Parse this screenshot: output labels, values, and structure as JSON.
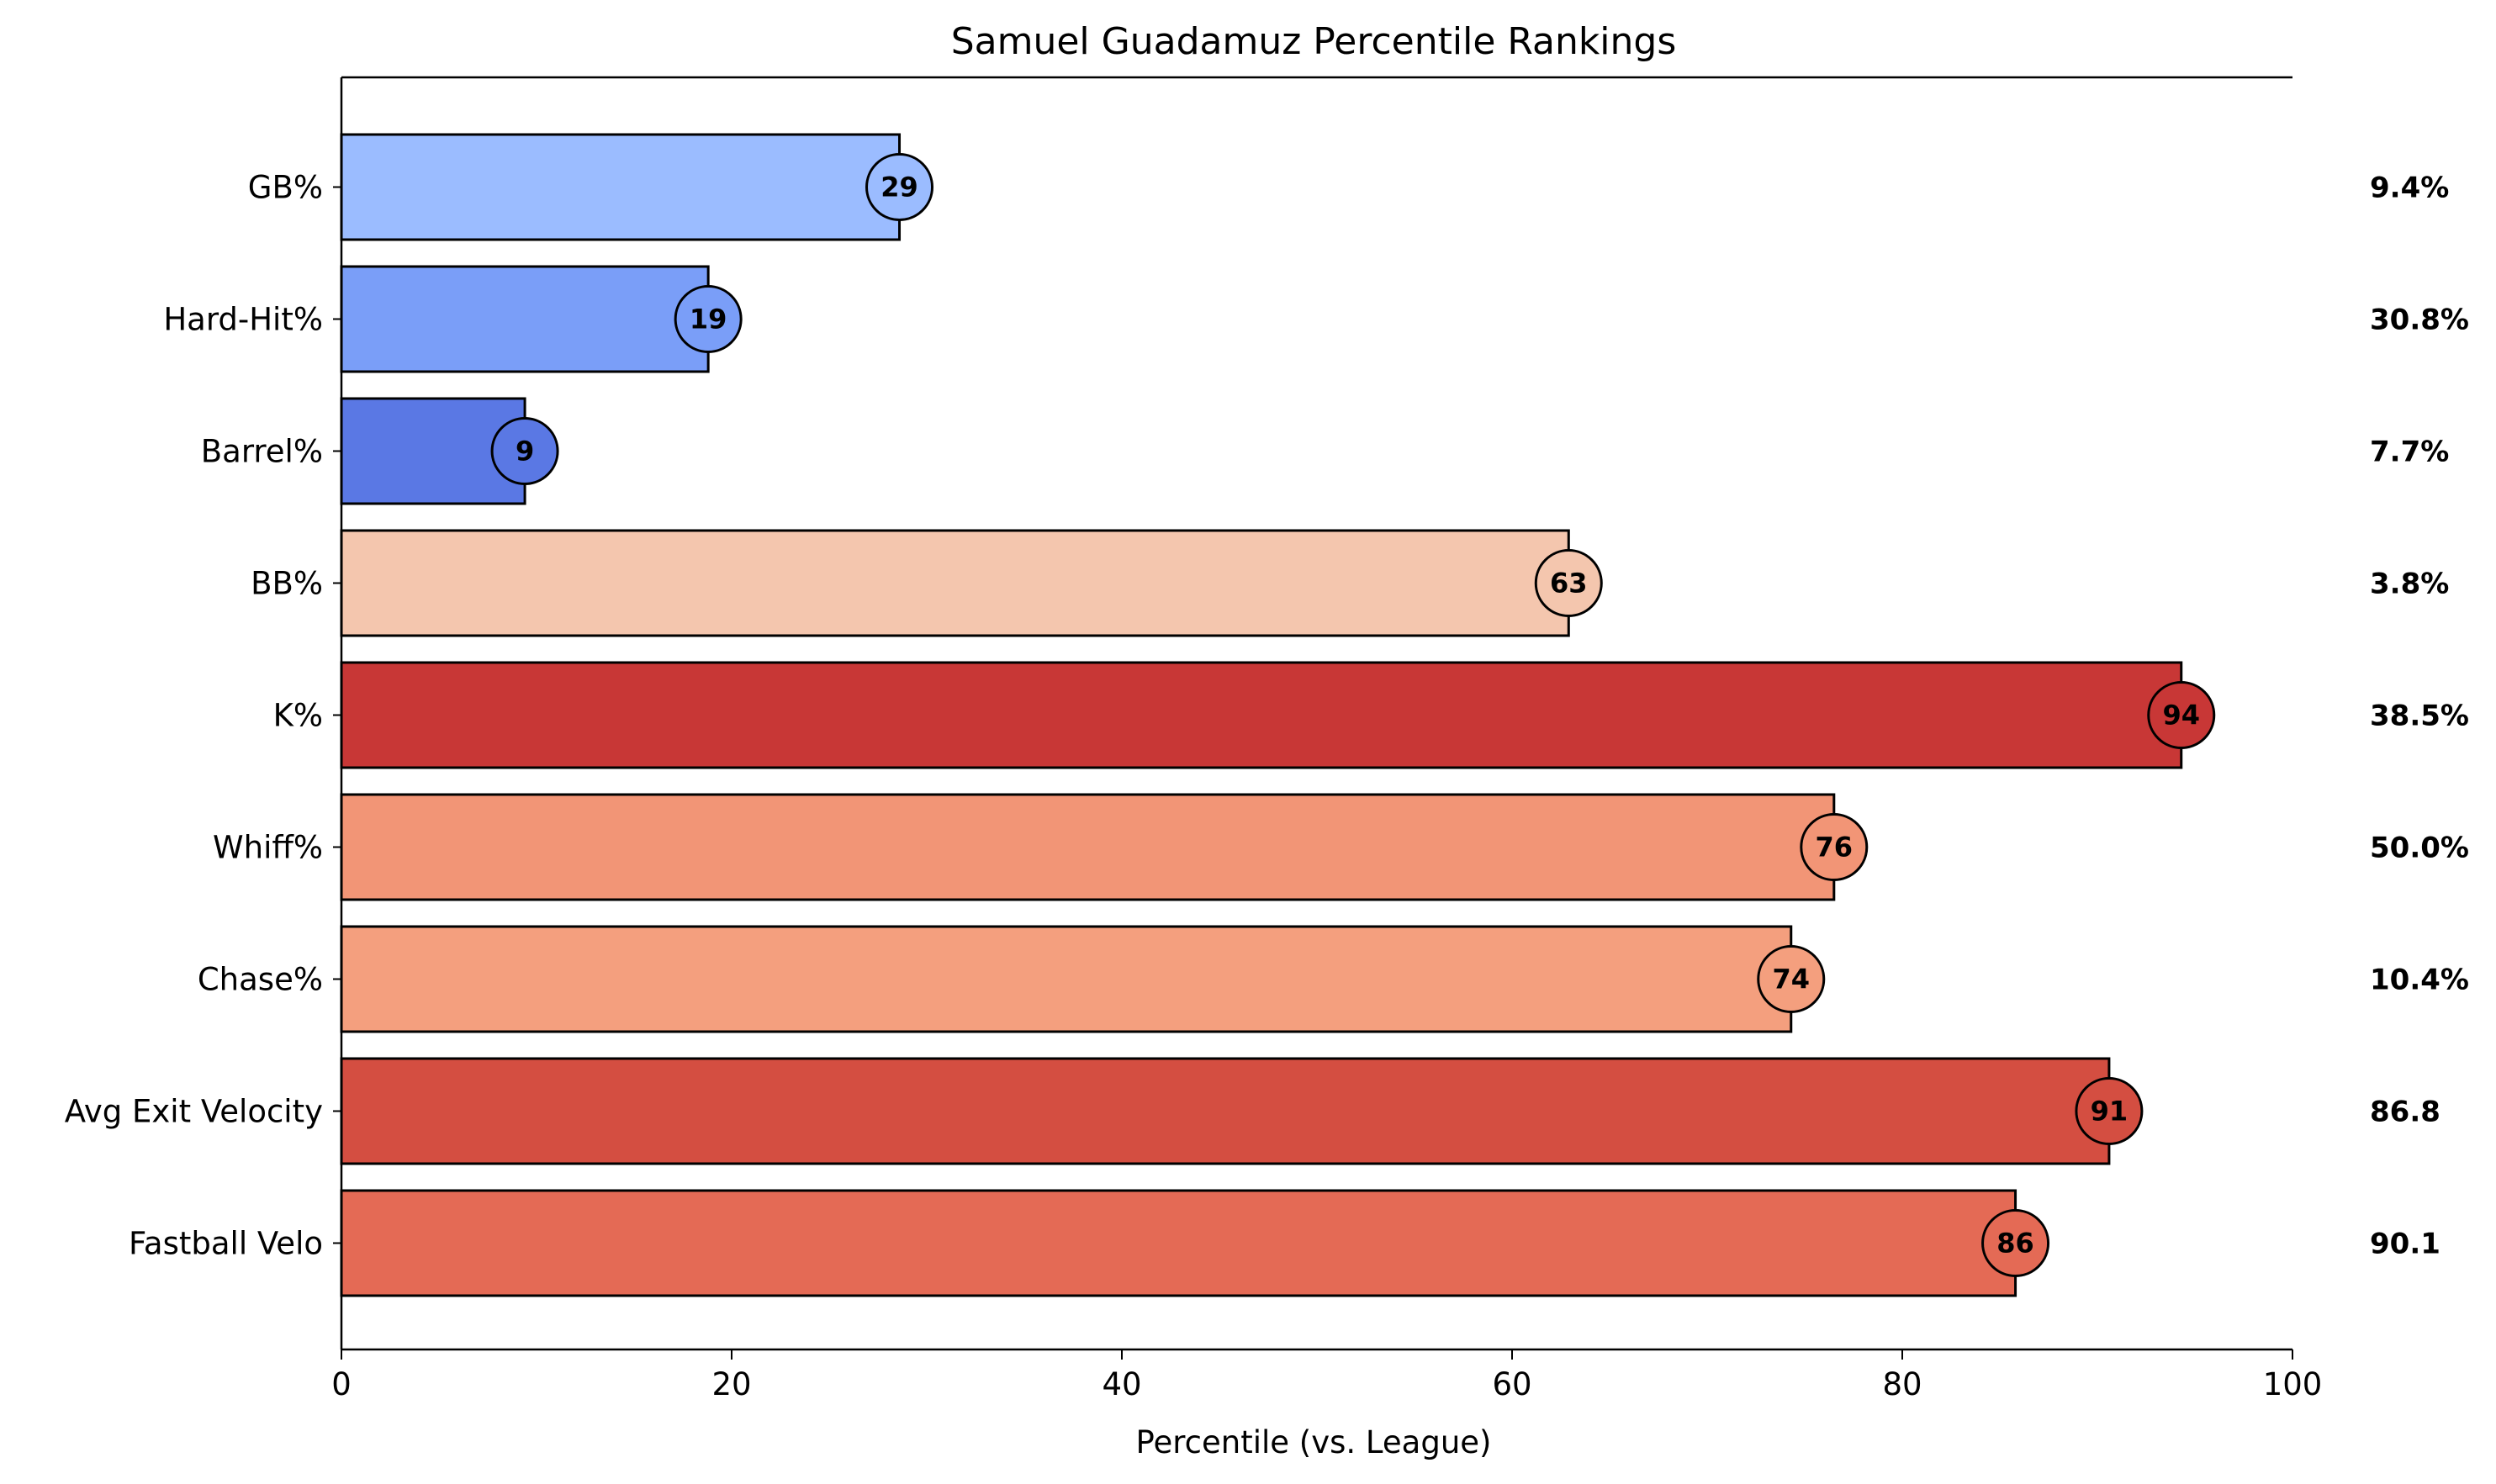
{
  "chart_data": {
    "type": "bar",
    "orientation": "horizontal",
    "title": "Samuel Guadamuz Percentile Rankings",
    "xlabel": "Percentile (vs. League)",
    "ylabel": "",
    "xlim": [
      0,
      100
    ],
    "xticks": [
      "0",
      "20",
      "40",
      "60",
      "80",
      "100"
    ],
    "grid": false,
    "categories": [
      "GB%",
      "Hard-Hit%",
      "Barrel%",
      "BB%",
      "K%",
      "Whiff%",
      "Chase%",
      "Avg Exit Velocity",
      "Fastball Velo"
    ],
    "values": [
      28.6,
      18.8,
      9.4,
      62.9,
      94.3,
      76.5,
      74.3,
      90.6,
      85.8
    ],
    "value_labels": [
      "29",
      "19",
      "9",
      "63",
      "94",
      "76",
      "74",
      "91",
      "86"
    ],
    "raw_values": [
      "9.4%",
      "30.8%",
      "7.7%",
      "3.8%",
      "38.5%",
      "50.0%",
      "10.4%",
      "86.8",
      "90.1"
    ],
    "colors": [
      "#9bbcff",
      "#7a9ef8",
      "#5a78e4",
      "#f4c6ae",
      "#c83736",
      "#f29576",
      "#f49f7e",
      "#d44e41",
      "#e46a55"
    ]
  }
}
